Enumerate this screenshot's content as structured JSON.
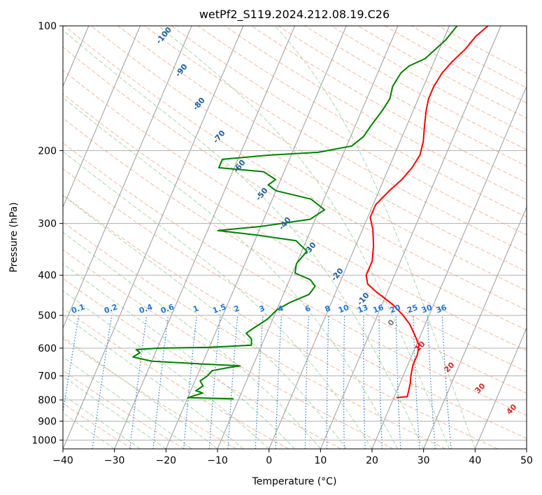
{
  "chart_data": {
    "type": "line",
    "title": "wetPf2_S119.2024.212.08.19.C26",
    "xlabel": "Temperature (°C)",
    "ylabel": "Pressure (hPa)",
    "xlim": [
      -40,
      50
    ],
    "ylim": [
      1050,
      100
    ],
    "y_scale": "log",
    "grid": true,
    "x_ticks": [
      "−40",
      "−30",
      "−20",
      "−10",
      "0",
      "10",
      "20",
      "30",
      "40",
      "50"
    ],
    "y_ticks": [
      "100",
      "200",
      "300",
      "400",
      "500",
      "600",
      "700",
      "800",
      "900",
      "1000"
    ],
    "mixing_ratio_labels": [
      "0.1",
      "0.2",
      "0.4",
      "0.6",
      "1",
      "1.5",
      "2",
      "3",
      "4",
      "6",
      "8",
      "10",
      "13",
      "16",
      "20",
      "25",
      "30",
      "36"
    ],
    "moist_adiabat_labels": [
      "-100",
      "-90",
      "-80",
      "-70",
      "-60",
      "-50",
      "-40",
      "-30",
      "-20",
      "-10",
      "0"
    ],
    "dry_adiabat_labels": [
      "10",
      "20",
      "30",
      "40"
    ],
    "colors": {
      "temperature": "#ff0000",
      "dewpoint": "#008000",
      "mixing_ratio": "#1f77d4",
      "dry_adiabat": "#f4a582",
      "moist_adiabat": "#9fd39f",
      "isotherm": "#9a9a9a",
      "moist_label": "#1f5f99",
      "dry_label": "#d62728"
    },
    "series": [
      {
        "id": "temperature",
        "points": [
          [
            20.5,
            790
          ],
          [
            22.5,
            785
          ],
          [
            22.3,
            760
          ],
          [
            22.0,
            730
          ],
          [
            21.5,
            700
          ],
          [
            21.0,
            660
          ],
          [
            21.0,
            620
          ],
          [
            20.5,
            590
          ],
          [
            19.0,
            560
          ],
          [
            17.0,
            525
          ],
          [
            15.0,
            500
          ],
          [
            12.0,
            470
          ],
          [
            8.0,
            440
          ],
          [
            5.5,
            420
          ],
          [
            4.5,
            400
          ],
          [
            4.5,
            370
          ],
          [
            3.5,
            340
          ],
          [
            2.0,
            310
          ],
          [
            0.5,
            290
          ],
          [
            0.5,
            270
          ],
          [
            2.0,
            250
          ],
          [
            3.5,
            235
          ],
          [
            4.5,
            220
          ],
          [
            5.0,
            205
          ],
          [
            4.5,
            190
          ],
          [
            3.5,
            175
          ],
          [
            2.5,
            160
          ],
          [
            2.0,
            150
          ],
          [
            2.0,
            140
          ],
          [
            2.5,
            130
          ],
          [
            3.5,
            122
          ],
          [
            5.0,
            114
          ],
          [
            6.0,
            106
          ],
          [
            7.5,
            100
          ]
        ]
      },
      {
        "id": "dewpoint",
        "points": [
          [
            -11.0,
            795
          ],
          [
            -20.0,
            790
          ],
          [
            -17.5,
            770
          ],
          [
            -19.0,
            760
          ],
          [
            -18.0,
            740
          ],
          [
            -19.0,
            720
          ],
          [
            -18.0,
            700
          ],
          [
            -17.5,
            680
          ],
          [
            -15.0,
            670
          ],
          [
            -12.5,
            662
          ],
          [
            -20.0,
            655
          ],
          [
            -30.0,
            645
          ],
          [
            -34.0,
            630
          ],
          [
            -33.0,
            615
          ],
          [
            -34.0,
            605
          ],
          [
            -30.0,
            600
          ],
          [
            -20.0,
            597
          ],
          [
            -12.0,
            590
          ],
          [
            -12.5,
            570
          ],
          [
            -14.0,
            552
          ],
          [
            -13.0,
            537
          ],
          [
            -11.0,
            510
          ],
          [
            -10.0,
            485
          ],
          [
            -8.0,
            465
          ],
          [
            -5.0,
            445
          ],
          [
            -4.5,
            425
          ],
          [
            -6.0,
            410
          ],
          [
            -9.5,
            395
          ],
          [
            -10.0,
            375
          ],
          [
            -9.0,
            350
          ],
          [
            -12.0,
            330
          ],
          [
            -20.0,
            320
          ],
          [
            -28.0,
            312
          ],
          [
            -20.0,
            305
          ],
          [
            -11.0,
            293
          ],
          [
            -9.0,
            278
          ],
          [
            -12.5,
            262
          ],
          [
            -20.0,
            250
          ],
          [
            -22.0,
            242
          ],
          [
            -21.0,
            235
          ],
          [
            -24.0,
            225
          ],
          [
            -33.0,
            220
          ],
          [
            -33.0,
            210
          ],
          [
            -24.0,
            205
          ],
          [
            -15.0,
            202
          ],
          [
            -9.0,
            195
          ],
          [
            -7.5,
            185
          ],
          [
            -7.0,
            175
          ],
          [
            -6.0,
            160
          ],
          [
            -5.5,
            150
          ],
          [
            -6.0,
            140
          ],
          [
            -5.5,
            130
          ],
          [
            -4.5,
            125
          ],
          [
            -2.0,
            120
          ],
          [
            -1.0,
            115
          ],
          [
            0.5,
            108
          ],
          [
            1.5,
            100
          ]
        ]
      }
    ]
  }
}
